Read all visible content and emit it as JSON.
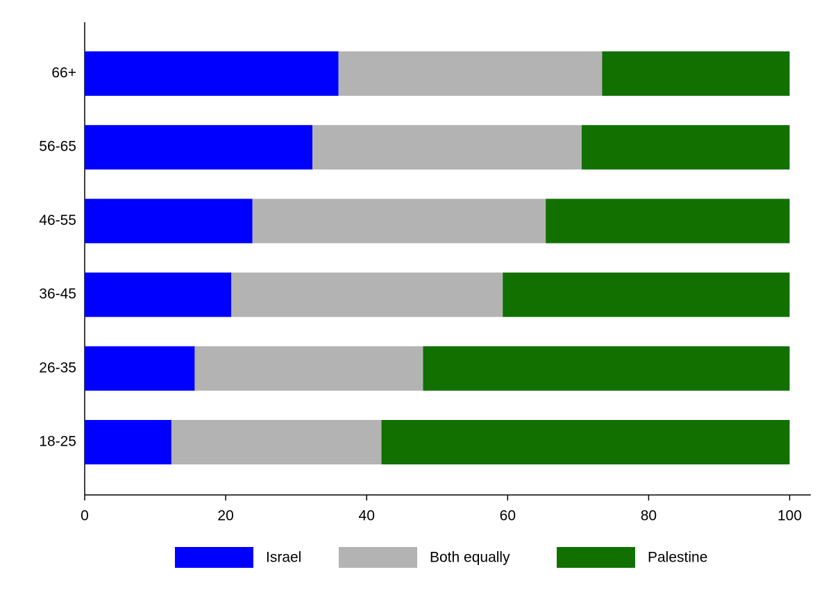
{
  "chart_data": {
    "type": "stacked_barh",
    "categories": [
      "18-25",
      "26-35",
      "36-45",
      "46-55",
      "56-65",
      "66+"
    ],
    "series": [
      {
        "name": "Israel",
        "color": "#0000ff",
        "values": [
          12.3,
          15.6,
          20.8,
          23.8,
          32.3,
          36.0
        ]
      },
      {
        "name": "Both equally",
        "color": "#b3b3b3",
        "values": [
          29.8,
          32.4,
          38.5,
          41.6,
          38.2,
          37.4
        ]
      },
      {
        "name": "Palestine",
        "color": "#117000",
        "values": [
          57.9,
          52.0,
          40.7,
          34.6,
          29.5,
          26.6
        ]
      }
    ],
    "xlim": [
      0,
      103
    ],
    "xticks": [
      0,
      20,
      40,
      60,
      80,
      100
    ],
    "legend": "bottom"
  }
}
